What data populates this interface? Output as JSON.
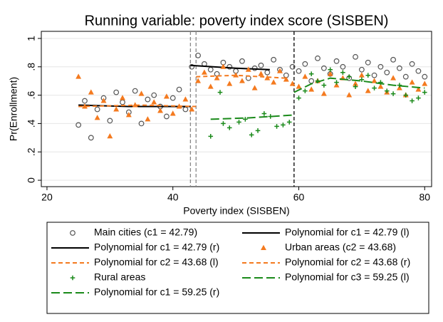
{
  "chart_data": {
    "type": "scatter",
    "title": "Running variable: poverty index score (SISBEN)",
    "x_label": "Poverty index (SISBEN)",
    "y_label": "Pr(Enrollment)",
    "xlim": [
      19.1,
      81.1
    ],
    "xticks": [
      20,
      40,
      60,
      80
    ],
    "ylim": [
      -0.045,
      1.05
    ],
    "yticks": [
      0,
      {
        "value": 0.2,
        "label": ".2"
      },
      {
        "value": 0.4,
        "label": ".4"
      },
      {
        "value": 0.6,
        "label": ".6"
      },
      {
        "value": 0.8,
        "label": ".8"
      },
      1
    ],
    "grid": true,
    "legend": "bottom",
    "legend_columns": 2,
    "vlines": [
      42.79,
      43.68,
      59.25
    ],
    "vline_colors": [
      "#888888",
      "#888888",
      "#000000"
    ],
    "series": [
      {
        "name": "Main cities (c1 = 42.79)",
        "kind": "marker",
        "marker": "circle",
        "color": "#555555",
        "x": [
          25,
          26,
          27,
          28,
          29,
          30,
          31,
          32,
          33,
          34,
          35,
          36,
          37,
          38,
          39,
          40,
          41,
          42,
          43,
          44,
          45,
          46,
          47,
          48,
          49,
          50,
          51,
          52,
          53,
          54,
          55,
          56,
          57,
          58,
          59,
          60,
          61,
          62,
          63,
          64,
          65,
          66,
          67,
          68,
          69,
          70,
          71,
          72,
          73,
          74,
          75,
          76,
          77,
          78,
          79,
          80
        ],
        "values": [
          0.39,
          0.56,
          0.3,
          0.5,
          0.58,
          0.42,
          0.62,
          0.55,
          0.48,
          0.63,
          0.4,
          0.57,
          0.6,
          0.52,
          0.45,
          0.58,
          0.64,
          0.5,
          0.8,
          0.88,
          0.82,
          0.78,
          0.75,
          0.83,
          0.8,
          0.77,
          0.84,
          0.72,
          0.79,
          0.81,
          0.76,
          0.85,
          0.78,
          0.74,
          0.8,
          0.77,
          0.82,
          0.7,
          0.86,
          0.79,
          0.75,
          0.84,
          0.8,
          0.72,
          0.87,
          0.78,
          0.83,
          0.74,
          0.8,
          0.76,
          0.85,
          0.79,
          0.73,
          0.82,
          0.77,
          0.73
        ]
      },
      {
        "name": "Polynomial for c1 = 42.79 (l)",
        "kind": "line",
        "dash": "solid",
        "color": "#000000",
        "x": [
          25,
          33,
          42.79
        ],
        "values": [
          0.53,
          0.52,
          0.52
        ]
      },
      {
        "name": "Polynomial for c1 = 42.79 (r)",
        "kind": "line",
        "dash": "solid",
        "color": "#000000",
        "x": [
          42.79,
          50,
          55.4
        ],
        "values": [
          0.81,
          0.79,
          0.78
        ]
      },
      {
        "name": "Urban areas (c2 = 43.68)",
        "kind": "marker",
        "marker": "triangle",
        "color": "#f47a1f",
        "x": [
          25,
          26,
          27,
          28,
          29,
          30,
          31,
          32,
          33,
          34,
          35,
          36,
          37,
          38,
          39,
          40,
          41,
          42,
          43,
          44,
          45,
          46,
          47,
          48,
          49,
          50,
          51,
          52,
          53,
          54,
          55,
          56,
          57,
          58,
          59,
          60,
          61,
          62,
          63,
          64,
          65,
          66,
          67,
          68,
          69,
          70,
          71,
          72,
          73,
          74,
          75,
          76,
          77,
          78,
          79,
          80
        ],
        "values": [
          0.73,
          0.52,
          0.62,
          0.44,
          0.56,
          0.31,
          0.5,
          0.58,
          0.46,
          0.53,
          0.61,
          0.43,
          0.55,
          0.49,
          0.59,
          0.47,
          0.52,
          0.57,
          0.5,
          0.7,
          0.76,
          0.66,
          0.72,
          0.8,
          0.68,
          0.74,
          0.7,
          0.78,
          0.65,
          0.75,
          0.72,
          0.69,
          0.77,
          0.71,
          0.68,
          0.66,
          0.73,
          0.64,
          0.7,
          0.61,
          0.75,
          0.67,
          0.72,
          0.6,
          0.68,
          0.74,
          0.63,
          0.7,
          0.66,
          0.62,
          0.72,
          0.65,
          0.6,
          0.69,
          0.64,
          0.68
        ]
      },
      {
        "name": "Polynomial for c2 = 43.68 (l)",
        "kind": "line",
        "dash": "dash",
        "color": "#f47a1f",
        "x": [
          25,
          35,
          43.68
        ],
        "values": [
          0.52,
          0.53,
          0.52
        ]
      },
      {
        "name": "Polynomial for c2 = 43.68 (r)",
        "kind": "line",
        "dash": "dash",
        "color": "#f47a1f",
        "x": [
          43.68,
          50,
          58
        ],
        "values": [
          0.73,
          0.74,
          0.72
        ]
      },
      {
        "name": "Rural areas",
        "kind": "marker",
        "marker": "plus",
        "color": "#1a8a1a",
        "x": [
          46,
          47.5,
          48,
          49,
          50.5,
          51.5,
          52.5,
          53.5,
          54.5,
          55.5,
          56.5,
          57.5,
          58.5,
          60,
          61,
          62,
          63,
          64,
          65,
          66,
          67,
          68,
          69,
          70,
          71,
          72,
          73,
          74,
          75,
          76,
          77,
          78,
          79,
          80
        ],
        "values": [
          0.31,
          0.62,
          0.4,
          0.37,
          0.41,
          0.43,
          0.32,
          0.35,
          0.47,
          0.45,
          0.38,
          0.39,
          0.41,
          0.58,
          0.63,
          0.75,
          0.7,
          0.67,
          0.78,
          0.69,
          0.76,
          0.73,
          0.66,
          0.71,
          0.74,
          0.65,
          0.69,
          0.63,
          0.61,
          0.67,
          0.6,
          0.56,
          0.58,
          0.62
        ]
      },
      {
        "name": "Polynomial for c3 = 59.25 (l)",
        "kind": "line",
        "dash": "longdash",
        "color": "#1a8a1a",
        "x": [
          46,
          52,
          59.25
        ],
        "values": [
          0.43,
          0.44,
          0.46
        ]
      },
      {
        "name": "Polynomial for c1 = 59.25 (r)",
        "kind": "line",
        "dash": "longdash",
        "color": "#1a8a1a",
        "x": [
          59.25,
          62,
          65,
          70,
          75,
          80
        ],
        "values": [
          0.62,
          0.68,
          0.72,
          0.7,
          0.67,
          0.65
        ]
      }
    ]
  }
}
